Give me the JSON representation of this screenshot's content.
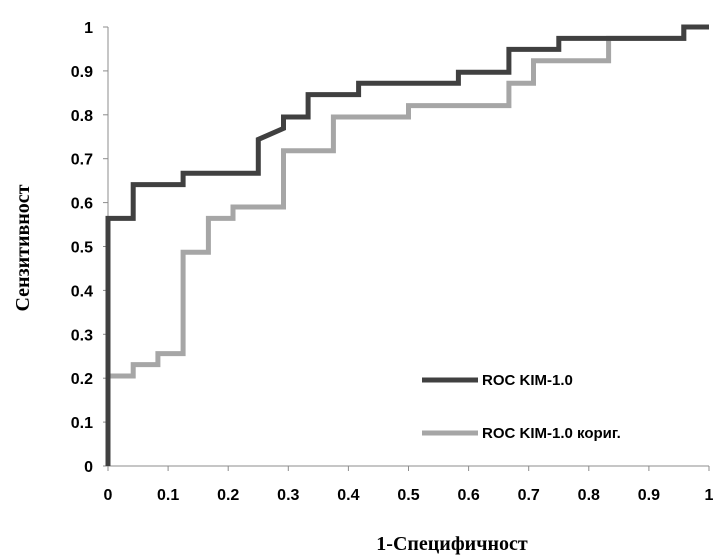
{
  "chart_data": {
    "type": "line",
    "xlabel": "1-Специфичност",
    "ylabel": "Сензитивност",
    "xlim": [
      0,
      1
    ],
    "ylim": [
      0,
      1
    ],
    "x_ticks": [
      "0",
      "0.1",
      "0.2",
      "0.3",
      "0.4",
      "0.5",
      "0.6",
      "0.7",
      "0.8",
      "0.9",
      "1"
    ],
    "y_ticks": [
      "0",
      "0.1",
      "0.2",
      "0.3",
      "0.4",
      "0.5",
      "0.6",
      "0.7",
      "0.8",
      "0.9",
      "1"
    ],
    "grid": false,
    "legend_position": "bottom-right",
    "series": [
      {
        "name": "ROC KIM-1.0",
        "color": "#404040",
        "points": [
          [
            0,
            0
          ],
          [
            0,
            0.564
          ],
          [
            0.042,
            0.564
          ],
          [
            0.042,
            0.641
          ],
          [
            0.125,
            0.641
          ],
          [
            0.125,
            0.667
          ],
          [
            0.25,
            0.667
          ],
          [
            0.25,
            0.744
          ],
          [
            0.292,
            0.769
          ],
          [
            0.292,
            0.795
          ],
          [
            0.333,
            0.795
          ],
          [
            0.333,
            0.846
          ],
          [
            0.417,
            0.846
          ],
          [
            0.417,
            0.872
          ],
          [
            0.583,
            0.872
          ],
          [
            0.583,
            0.897
          ],
          [
            0.667,
            0.897
          ],
          [
            0.667,
            0.949
          ],
          [
            0.75,
            0.949
          ],
          [
            0.75,
            0.974
          ],
          [
            0.833,
            0.974
          ],
          [
            0.958,
            0.974
          ],
          [
            0.958,
            1.0
          ],
          [
            1.0,
            1.0
          ]
        ]
      },
      {
        "name": "ROC KIM-1.0 кориг.",
        "color": "#a6a6a6",
        "points": [
          [
            0,
            0
          ],
          [
            0,
            0.205
          ],
          [
            0.042,
            0.205
          ],
          [
            0.042,
            0.231
          ],
          [
            0.083,
            0.231
          ],
          [
            0.083,
            0.256
          ],
          [
            0.125,
            0.256
          ],
          [
            0.125,
            0.487
          ],
          [
            0.167,
            0.487
          ],
          [
            0.167,
            0.564
          ],
          [
            0.208,
            0.564
          ],
          [
            0.208,
            0.59
          ],
          [
            0.292,
            0.59
          ],
          [
            0.292,
            0.718
          ],
          [
            0.375,
            0.718
          ],
          [
            0.375,
            0.795
          ],
          [
            0.5,
            0.795
          ],
          [
            0.5,
            0.821
          ],
          [
            0.667,
            0.821
          ],
          [
            0.667,
            0.872
          ],
          [
            0.708,
            0.872
          ],
          [
            0.708,
            0.923
          ],
          [
            0.833,
            0.923
          ],
          [
            0.833,
            0.974
          ],
          [
            0.958,
            0.974
          ],
          [
            0.958,
            1.0
          ],
          [
            1.0,
            1.0
          ]
        ]
      }
    ]
  }
}
